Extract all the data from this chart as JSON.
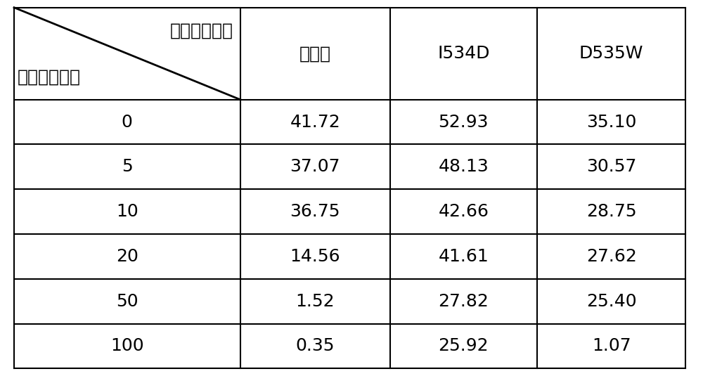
{
  "header_top_right": "精氨酸脱羧酶",
  "header_bottom_left": "胍基丁胺浓度",
  "col_headers": [
    "野生型",
    "I534D",
    "D535W"
  ],
  "row_labels": [
    "0",
    "5",
    "10",
    "20",
    "50",
    "100"
  ],
  "table_data": [
    [
      "41.72",
      "52.93",
      "35.10"
    ],
    [
      "37.07",
      "48.13",
      "30.57"
    ],
    [
      "36.75",
      "42.66",
      "28.75"
    ],
    [
      "14.56",
      "41.61",
      "27.62"
    ],
    [
      "1.52",
      "27.82",
      "25.40"
    ],
    [
      "0.35",
      "25.92",
      "1.07"
    ]
  ],
  "bg_color": "#ffffff",
  "text_color": "#000000",
  "line_color": "#000000",
  "font_size": 18,
  "header_font_size": 18
}
